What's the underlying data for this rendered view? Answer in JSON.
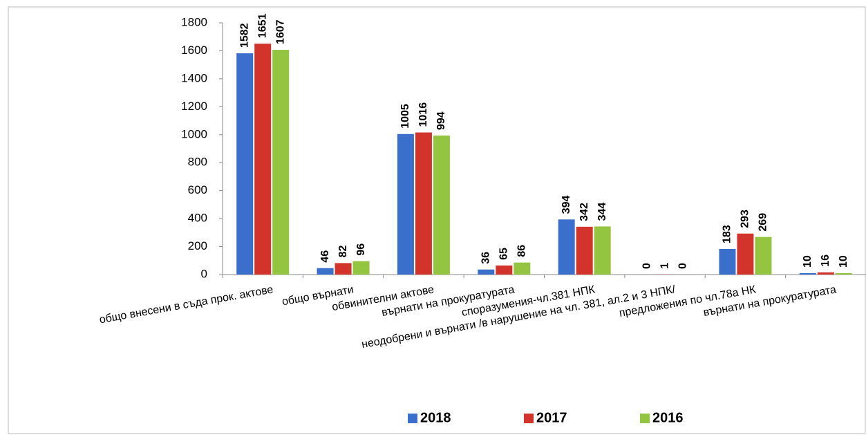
{
  "chart_data": {
    "type": "bar",
    "categories": [
      "общо внесени в съда прок. актове",
      "общо върнати",
      "обвинителни актове",
      "върнати на прокуратурата",
      "споразумения-чл.381 НПК",
      "неодобрени и върнати /в нарушение на чл. 381, ал.2 и 3 НПК/",
      "предложения по чл.78а НК",
      "върнати на прокуратурата"
    ],
    "series": [
      {
        "name": "2018",
        "color": "#3b6fcc",
        "values": [
          1582,
          46,
          1005,
          36,
          394,
          0,
          183,
          10
        ]
      },
      {
        "name": "2017",
        "color": "#d2332b",
        "values": [
          1651,
          82,
          1016,
          65,
          342,
          1,
          293,
          16
        ]
      },
      {
        "name": "2016",
        "color": "#93c540",
        "values": [
          1607,
          96,
          994,
          86,
          344,
          0,
          269,
          10
        ]
      }
    ],
    "ylim": [
      0,
      1800
    ],
    "yticks": [
      0,
      200,
      400,
      600,
      800,
      1000,
      1200,
      1400,
      1600,
      1800
    ],
    "legend": "bottom"
  }
}
